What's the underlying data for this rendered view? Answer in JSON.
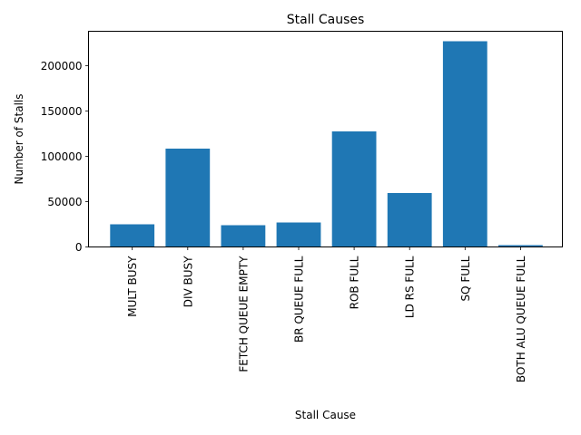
{
  "chart_data": {
    "type": "bar",
    "title": "Stall Causes",
    "xlabel": "Stall Cause",
    "ylabel": "Number of Stalls",
    "categories": [
      "MULT BUSY",
      "DIV BUSY",
      "FETCH QUEUE EMPTY",
      "BR QUEUE FULL",
      "ROB FULL",
      "LD RS FULL",
      "SQ FULL",
      "BOTH ALU QUEUE FULL"
    ],
    "values": [
      25000,
      108500,
      24000,
      27000,
      127500,
      59500,
      227000,
      2000
    ],
    "ylim": [
      0,
      238000
    ],
    "yticks": [
      0,
      50000,
      100000,
      150000,
      200000
    ],
    "grid": false,
    "bar_color": "#1f77b4"
  }
}
